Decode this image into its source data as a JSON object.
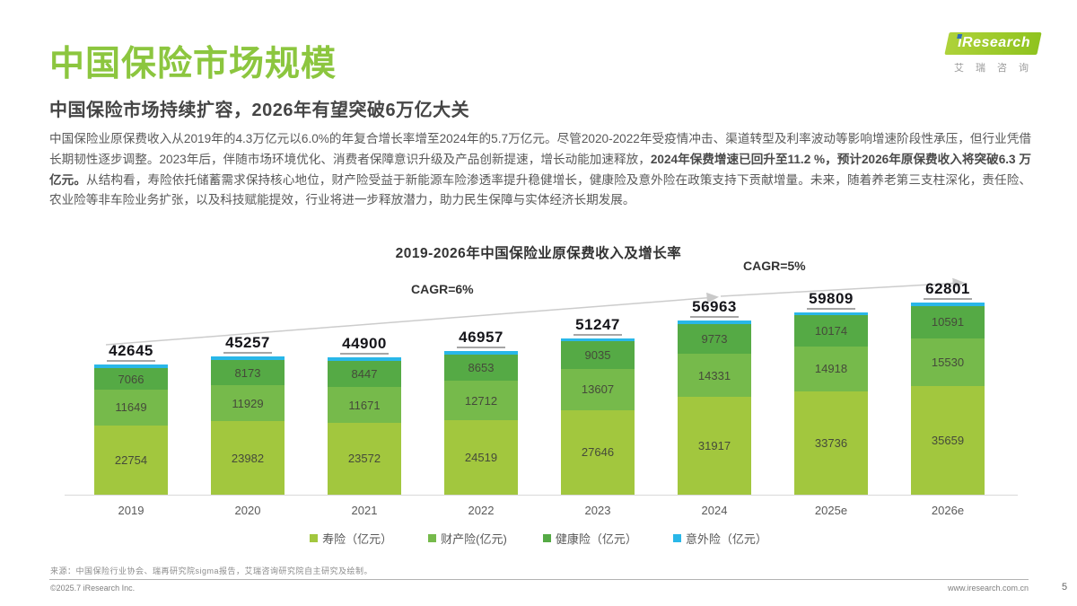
{
  "logo": {
    "brand": "iResearch",
    "brand_cn": "艾瑞咨询"
  },
  "header": {
    "title": "中国保险市场规模",
    "subtitle": "中国保险市场持续扩容，2026年有望突破6万亿大关",
    "paragraph_segments": [
      {
        "text": "中国保险业原保费收入从2019年的4.3万亿元以6.0%的年复合增长率增至2024年的5.7万亿元。尽管2020-2022年受疫情冲击、渠道转型及利率波动等影响增速阶段性承压，但行业凭借长期韧性逐步调整。2023年后，伴随市场环境优化、消费者保障意识升级及产品创新提速，增长动能加速释放，",
        "bold": false
      },
      {
        "text": "2024年保费增速已回升至11.2 %，预计2026年原保费收入将突破6.3 万亿元。",
        "bold": true
      },
      {
        "text": "从结构看，寿险依托储蓄需求保持核心地位，财产险受益于新能源车险渗透率提升稳健增长，健康险及意外险在政策支持下贡献增量。未来，随着养老第三支柱深化，责任险、农业险等非车险业务扩张，以及科技赋能提效，行业将进一步释放潜力，助力民生保障与实体经济长期发展。",
        "bold": false
      }
    ]
  },
  "chart_data": {
    "type": "bar",
    "stacked": true,
    "title": "2019-2026年中国保险业原保费收入及增长率",
    "categories": [
      "2019",
      "2020",
      "2021",
      "2022",
      "2023",
      "2024",
      "2025e",
      "2026e"
    ],
    "totals": [
      42645,
      45257,
      44900,
      46957,
      51247,
      56963,
      59809,
      62801
    ],
    "series": [
      {
        "key": "life",
        "name": "寿险（亿元）",
        "color": "#a2c73e",
        "values": [
          22754,
          23982,
          23572,
          24519,
          27646,
          31917,
          33736,
          35659
        ],
        "value_labels_shown": true
      },
      {
        "key": "property",
        "name": "财产险(亿元)",
        "color": "#76ba4b",
        "values": [
          11649,
          11929,
          11671,
          12712,
          13607,
          14331,
          14918,
          15530
        ],
        "value_labels_shown": true
      },
      {
        "key": "health",
        "name": "健康险（亿元）",
        "color": "#55aa45",
        "values": [
          7066,
          8173,
          8447,
          8653,
          9035,
          9773,
          10174,
          10591
        ],
        "value_labels_shown": true
      },
      {
        "key": "accident",
        "name": "意外险（亿元）",
        "color": "#29b7e8",
        "values": [
          1176,
          1173,
          1210,
          1073,
          959,
          942,
          981,
          1021
        ],
        "value_labels_shown": false,
        "derived_from_totals": true
      }
    ],
    "annotations": [
      {
        "label": "CAGR=6%",
        "span": [
          "2019",
          "2024"
        ]
      },
      {
        "label": "CAGR=5%",
        "span": [
          "2024",
          "2026e"
        ]
      }
    ],
    "ylim": [
      0,
      65000
    ],
    "grid": false,
    "legend_position": "bottom",
    "value_labels": "totals bold with underline above each bar; segment values inside bars (accident segment unlabeled)"
  },
  "footer": {
    "source": "来源：中国保险行业协会、瑞再研究院sigma报告，艾瑞咨询研究院自主研究及绘制。",
    "copyright": "©2025.7 iResearch Inc.",
    "website": "www.iresearch.com.cn",
    "page_number": "5"
  }
}
